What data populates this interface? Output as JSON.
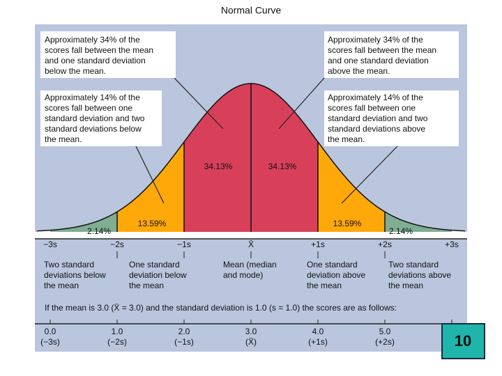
{
  "title": "Normal Curve",
  "callouts": [
    {
      "lines": [
        "Approximately 34% of the",
        "scores fall between the mean",
        "and one standard deviation",
        "below the mean."
      ]
    },
    {
      "lines": [
        "Approximately 34% of the",
        "scores fall between the mean",
        "and one standard deviation",
        "above the mean."
      ]
    },
    {
      "lines": [
        "Approximately 14% of the",
        "scores fall between one",
        "standard deviation and two",
        "standard deviations below",
        "the mean."
      ]
    },
    {
      "lines": [
        "Approximately 14% of the",
        "scores fall between one",
        "standard deviation and two",
        "standard deviations above",
        "the mean."
      ]
    }
  ],
  "regions": [
    "2.14%",
    "13.59%",
    "34.13%",
    "34.13%",
    "13.59%",
    "2.14%"
  ],
  "sd_labels": [
    "−3s",
    "−2s",
    "−1s",
    "X̄",
    "+1s",
    "+2s",
    "+3s"
  ],
  "descriptions": [
    {
      "lines": [
        "Two standard",
        "deviations below",
        "the mean"
      ]
    },
    {
      "lines": [
        "One standard",
        "deviation below",
        "the mean"
      ]
    },
    {
      "lines": [
        "Mean (median",
        "and mode)"
      ]
    },
    {
      "lines": [
        "One standard",
        "deviation above",
        "the mean"
      ]
    },
    {
      "lines": [
        "Two standard",
        "deviations above",
        "the mean"
      ]
    }
  ],
  "note": "If the mean is 3.0 (X̄ = 3.0) and the standard deviation is 1.0 (s = 1.0) the scores are as follows:",
  "scale": {
    "values": [
      "0.0",
      "1.0",
      "2.0",
      "3.0",
      "4.0",
      "5.0"
    ],
    "brackets": [
      "(−3s)",
      "(−2s)",
      "(−1s)",
      "(X̄)",
      "(+1s)",
      "(+2s)"
    ]
  },
  "page_number": "10"
}
